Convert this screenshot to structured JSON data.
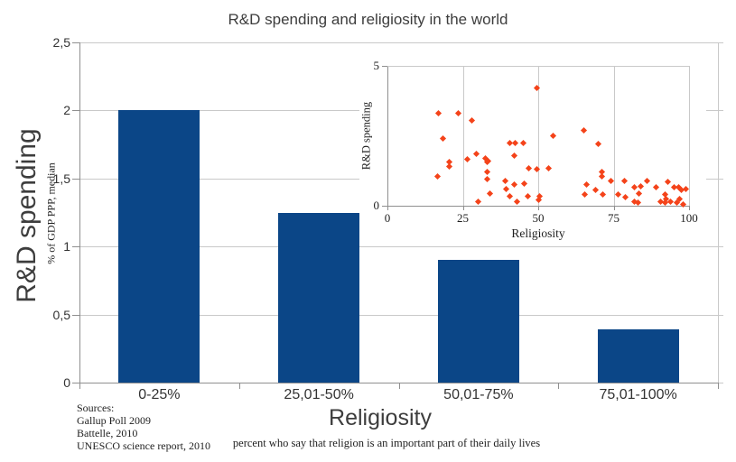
{
  "title": "R&D spending and religiosity in the world",
  "colors": {
    "background": "#ffffff",
    "bar": "#0b4687",
    "marker": "#f4431a",
    "gridline": "#c9c9c9",
    "axis": "#8f8f8f",
    "title_text": "#3d3d3d",
    "serif_text": "#1f1f1f"
  },
  "chart_data": [
    {
      "type": "bar",
      "title": "R&D spending and religiosity in the world",
      "categories": [
        "0-25%",
        "25,01-50%",
        "50,01-75%",
        "75,01-100%"
      ],
      "values": [
        2,
        1.25,
        0.9,
        0.39
      ],
      "xlabel": "Religiosity",
      "xlabel_note": "percent who say that religion is an important part of their daily lives",
      "ylabel": "R&D spending",
      "ylabel_note": "% of GDP PPP, median",
      "ylim": [
        0,
        2.5
      ],
      "ytick_values": [
        0,
        0.5,
        1,
        1.5,
        2,
        2.5
      ],
      "ytick_labels": [
        "0",
        "0,5",
        "1",
        "1,5",
        "2",
        "2,5"
      ],
      "grid": "horizontal",
      "legend": "none"
    },
    {
      "type": "scatter",
      "xlabel": "Religiosity",
      "ylabel": "R&D spending",
      "xlim": [
        0,
        100
      ],
      "ylim": [
        0,
        5
      ],
      "xtick_values": [
        0,
        25,
        50,
        75,
        100
      ],
      "xtick_labels": [
        "0",
        "25",
        "50",
        "75",
        "100"
      ],
      "ytick_values": [
        0,
        5
      ],
      "ytick_labels": [
        "0",
        "5"
      ],
      "grid": "vertical",
      "marker": "diamond",
      "legend": "none",
      "points": [
        [
          17,
          3.3
        ],
        [
          23.5,
          3.3
        ],
        [
          28,
          3.05
        ],
        [
          18.5,
          2.4
        ],
        [
          49.5,
          4.2
        ],
        [
          55,
          2.5
        ],
        [
          65,
          2.7
        ],
        [
          70,
          2.2
        ],
        [
          40.5,
          2.25
        ],
        [
          42.5,
          2.25
        ],
        [
          45,
          2.25
        ],
        [
          29.5,
          1.85
        ],
        [
          42,
          1.8
        ],
        [
          26.5,
          1.65
        ],
        [
          32.5,
          1.7
        ],
        [
          33.5,
          1.6
        ],
        [
          33,
          1.55
        ],
        [
          20.5,
          1.55
        ],
        [
          20.5,
          1.4
        ],
        [
          47,
          1.35
        ],
        [
          49.5,
          1.3
        ],
        [
          53.5,
          1.35
        ],
        [
          16.5,
          1.05
        ],
        [
          33,
          1.2
        ],
        [
          33,
          0.95
        ],
        [
          39,
          0.9
        ],
        [
          42,
          0.75
        ],
        [
          39.5,
          0.6
        ],
        [
          45.5,
          0.8
        ],
        [
          40.5,
          0.35
        ],
        [
          43,
          0.15
        ],
        [
          46.5,
          0.35
        ],
        [
          50,
          0.2
        ],
        [
          50.5,
          0.35
        ],
        [
          34,
          0.45
        ],
        [
          30,
          0.15
        ],
        [
          71,
          1.2
        ],
        [
          71,
          1.05
        ],
        [
          74,
          0.9
        ],
        [
          66,
          0.75
        ],
        [
          69,
          0.55
        ],
        [
          65.5,
          0.4
        ],
        [
          71.5,
          0.4
        ],
        [
          78.5,
          0.9
        ],
        [
          76.5,
          0.4
        ],
        [
          79,
          0.3
        ],
        [
          82,
          0.65
        ],
        [
          84,
          0.7
        ],
        [
          83.5,
          0.45
        ],
        [
          82,
          0.15
        ],
        [
          83,
          0.1
        ],
        [
          86,
          0.9
        ],
        [
          89,
          0.65
        ],
        [
          90.5,
          0.15
        ],
        [
          92,
          0.4
        ],
        [
          92.5,
          0.25
        ],
        [
          92,
          0.1
        ],
        [
          94,
          0.15
        ],
        [
          93,
          0.85
        ],
        [
          95,
          0.65
        ],
        [
          96.5,
          0.65
        ],
        [
          96,
          0.1
        ],
        [
          97.5,
          0.55
        ],
        [
          98,
          0.05
        ],
        [
          97,
          0.25
        ],
        [
          99,
          0.6
        ]
      ]
    }
  ],
  "sources": {
    "lines": [
      "Sources:",
      "Gallup Poll 2009",
      "Battelle, 2010",
      "UNESCO science report, 2010"
    ]
  }
}
